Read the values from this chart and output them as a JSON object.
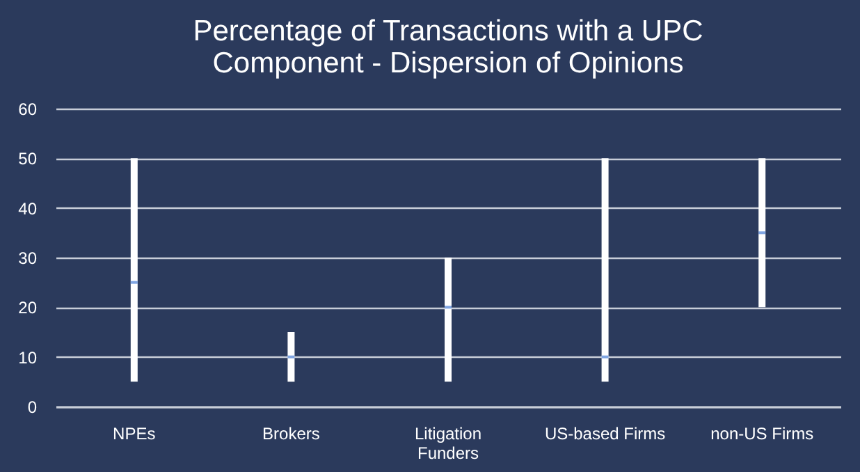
{
  "chart_data": {
    "type": "bar",
    "title": [
      "Percentage of Transactions with a UPC",
      "Component - Dispersion of Opinions"
    ],
    "categories": [
      "NPEs",
      "Brokers",
      "Litigation Funders",
      "US-based Firms",
      "non-US Firms"
    ],
    "series": [
      {
        "type": "bar",
        "color": "#ffffff",
        "values": [
          45,
          10,
          25,
          45,
          30
        ],
        "base": [
          5,
          5,
          5,
          5,
          20
        ]
      },
      {
        "type": "scatter",
        "color": "#4a7fd6",
        "x": [
          "NPEs",
          "Brokers",
          "Litigation Funders",
          "US-based Firms",
          "non-US Firms"
        ],
        "values": [
          25,
          10,
          20,
          10,
          35
        ]
      }
    ],
    "ylim": [
      0,
      60
    ],
    "yticks": [
      0,
      10,
      20,
      30,
      40,
      50,
      60
    ],
    "grid": "y"
  }
}
